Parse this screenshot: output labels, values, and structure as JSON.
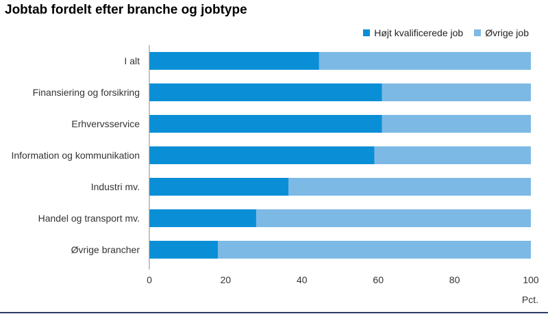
{
  "chart_data": {
    "type": "bar",
    "orientation": "horizontal",
    "stacked": true,
    "title": "Jobtab fordelt efter branche og jobtype",
    "xlabel": "",
    "ylabel": "",
    "unit_label": "Pct.",
    "xlim": [
      0,
      100
    ],
    "x_ticks": [
      0,
      20,
      40,
      60,
      80,
      100
    ],
    "grid": false,
    "legend_position": "top-right",
    "categories": [
      "I alt",
      "Finansiering og forsikring",
      "Erhvervsservice",
      "Information og kommunikation",
      "Industri mv.",
      "Handel og transport mv.",
      "Øvrige brancher"
    ],
    "series": [
      {
        "name": "Højt kvalificerede job",
        "color": "#0a8fd6",
        "values": [
          44.5,
          61,
          61,
          59,
          36.5,
          28,
          18
        ]
      },
      {
        "name": "Øvrige job",
        "color": "#7db9e5",
        "values": [
          55.5,
          39,
          39,
          41,
          63.5,
          72,
          82
        ]
      }
    ]
  }
}
